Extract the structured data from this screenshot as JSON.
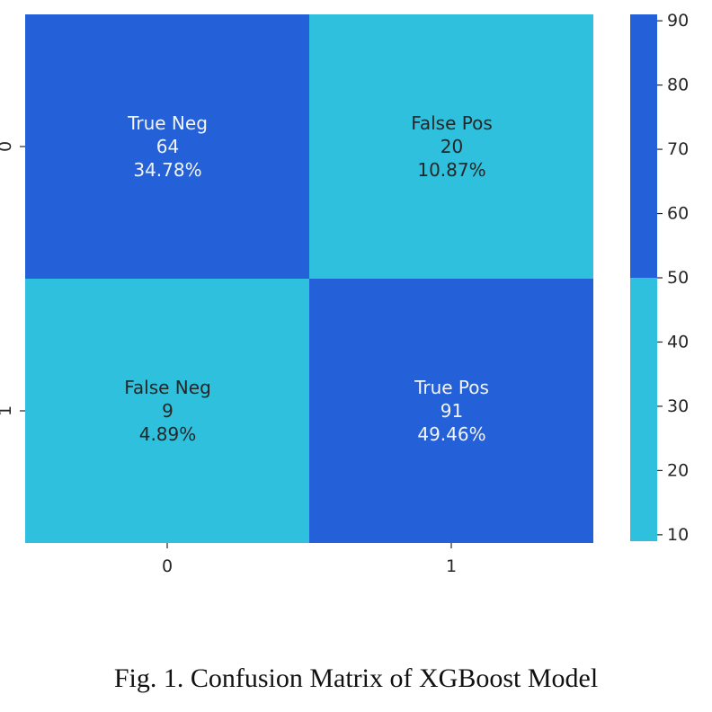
{
  "caption": "Fig. 1. Confusion Matrix of XGBoost Model",
  "chart_data": {
    "type": "heatmap",
    "x_tick_labels": [
      "0",
      "1"
    ],
    "y_tick_labels": [
      "0",
      "1"
    ],
    "cells": [
      [
        {
          "label": "True Neg",
          "count": "64",
          "percent": "34.78%",
          "value": 64
        },
        {
          "label": "False Pos",
          "count": "20",
          "percent": "10.87%",
          "value": 20
        }
      ],
      [
        {
          "label": "False Neg",
          "count": "9",
          "percent": "4.89%",
          "value": 9
        },
        {
          "label": "True Pos",
          "count": "91",
          "percent": "49.46%",
          "value": 91
        }
      ]
    ],
    "colormap": {
      "boundary": 50,
      "low_color": "#2ec0dc",
      "high_color": "#2460d8",
      "light_text_color": "#f4f4f4",
      "dark_text_color": "#262626"
    },
    "colorbar": {
      "range": [
        9,
        91
      ],
      "ticks": [
        "90",
        "80",
        "70",
        "60",
        "50",
        "40",
        "30",
        "20",
        "10"
      ],
      "tick_values": [
        90,
        80,
        70,
        60,
        50,
        40,
        30,
        20,
        10
      ]
    }
  }
}
